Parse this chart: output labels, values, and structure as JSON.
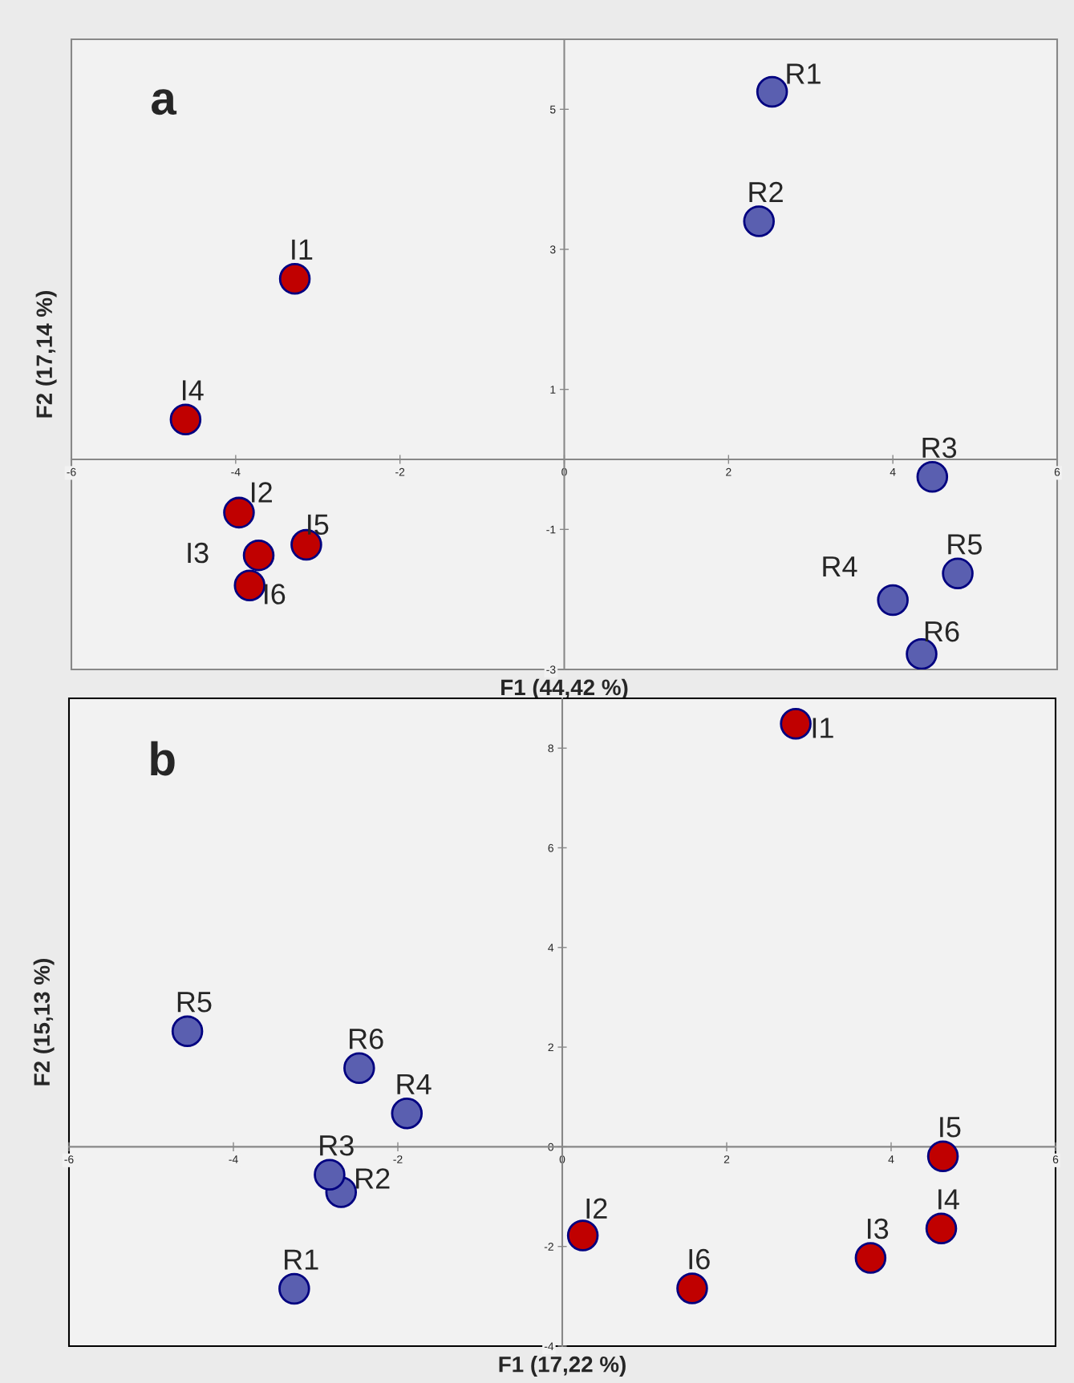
{
  "chart_data": [
    {
      "type": "scatter",
      "title": "a",
      "xlabel": "F1 (44,42 %)",
      "ylabel": "F2 (17,14 %)",
      "xlim": [
        -6,
        6
      ],
      "ylim": [
        -3,
        6
      ],
      "xticks": [
        -6,
        -4,
        -2,
        0,
        2,
        4,
        6
      ],
      "yticks": [
        -3,
        -1,
        1,
        3,
        5
      ],
      "grid": false,
      "legend": false,
      "marker": "circle",
      "series": [
        {
          "color": "#c00000",
          "x": [
            -3.28,
            -3.96,
            -3.72,
            -4.61,
            -3.14,
            -3.83
          ],
          "values": [
            2.58,
            -0.76,
            -1.37,
            0.57,
            -1.22,
            -1.8
          ]
        },
        {
          "color": "#5a5fb0",
          "x": [
            2.53,
            2.37,
            4.48,
            4.0,
            4.79,
            4.35
          ],
          "values": [
            5.25,
            3.4,
            -0.25,
            -2.01,
            -1.63,
            -2.78
          ]
        }
      ],
      "annotations": [
        {
          "text": "I1",
          "x": -3.28,
          "y": 2.58
        },
        {
          "text": "I2",
          "x": -3.96,
          "y": -0.76
        },
        {
          "text": "I3",
          "x": -3.72,
          "y": -1.37
        },
        {
          "text": "I4",
          "x": -4.61,
          "y": 0.57
        },
        {
          "text": "I5",
          "x": -3.14,
          "y": -1.22
        },
        {
          "text": "I6",
          "x": -3.83,
          "y": -1.8
        },
        {
          "text": "R1",
          "x": 2.53,
          "y": 5.25
        },
        {
          "text": "R2",
          "x": 2.37,
          "y": 3.4
        },
        {
          "text": "R3",
          "x": 4.48,
          "y": -0.25
        },
        {
          "text": "R4",
          "x": 4.0,
          "y": -2.01
        },
        {
          "text": "R5",
          "x": 4.79,
          "y": -1.63
        },
        {
          "text": "R6",
          "x": 4.35,
          "y": -2.78
        }
      ]
    },
    {
      "type": "scatter",
      "title": "b",
      "xlabel": "F1 (17,22 %)",
      "ylabel": "F2 (15,13 %)",
      "xlim": [
        -6,
        6
      ],
      "ylim": [
        -4,
        9
      ],
      "xticks": [
        -6,
        -4,
        -2,
        0,
        2,
        4,
        6
      ],
      "yticks": [
        -4,
        -2,
        0,
        2,
        4,
        6,
        8
      ],
      "grid": false,
      "legend": false,
      "marker": "circle",
      "series": [
        {
          "color": "#c00000",
          "x": [
            2.84,
            0.25,
            3.75,
            4.61,
            4.63,
            1.58
          ],
          "values": [
            8.49,
            -1.78,
            -2.23,
            -1.64,
            -0.19,
            -2.84
          ]
        },
        {
          "color": "#5a5fb0",
          "x": [
            -3.26,
            -2.69,
            -2.83,
            -1.89,
            -4.56,
            -2.47
          ],
          "values": [
            -2.85,
            -0.91,
            -0.56,
            0.67,
            2.32,
            1.58
          ]
        }
      ],
      "annotations": [
        {
          "text": "I1",
          "x": 2.84,
          "y": 8.49
        },
        {
          "text": "I2",
          "x": 0.25,
          "y": -1.78
        },
        {
          "text": "I3",
          "x": 3.75,
          "y": -2.23
        },
        {
          "text": "I4",
          "x": 4.61,
          "y": -1.64
        },
        {
          "text": "I5",
          "x": 4.63,
          "y": -0.19
        },
        {
          "text": "I6",
          "x": 1.58,
          "y": -2.84
        },
        {
          "text": "R1",
          "x": -3.26,
          "y": -2.85
        },
        {
          "text": "R2",
          "x": -2.69,
          "y": -0.91
        },
        {
          "text": "R3",
          "x": -2.83,
          "y": -0.56
        },
        {
          "text": "R4",
          "x": -1.89,
          "y": 0.67
        },
        {
          "text": "R5",
          "x": -4.56,
          "y": 2.32
        },
        {
          "text": "R6",
          "x": -2.47,
          "y": 1.58
        }
      ]
    }
  ]
}
